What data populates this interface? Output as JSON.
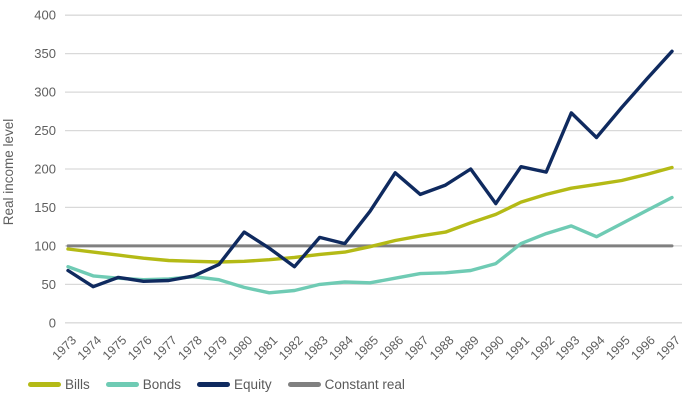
{
  "chart_data": {
    "type": "line",
    "title": "",
    "ylabel": "Real income level",
    "xlabel": "",
    "ylim": [
      0,
      400
    ],
    "ytick_step": 50,
    "grid": "horizontal-only",
    "legend_position": "bottom-left",
    "gridline_color": "#d9d9d9",
    "axis_text_color": "#5f5f5f",
    "x": [
      1973,
      1974,
      1975,
      1976,
      1977,
      1978,
      1979,
      1980,
      1981,
      1982,
      1983,
      1984,
      1985,
      1986,
      1987,
      1988,
      1989,
      1990,
      1991,
      1992,
      1993,
      1994,
      1995,
      1996,
      1997
    ],
    "series": [
      {
        "name": "Bills",
        "color": "#b4ba16",
        "values": [
          96,
          92,
          88,
          84,
          81,
          80,
          79,
          80,
          82,
          85,
          89,
          92,
          99,
          107,
          113,
          118,
          130,
          141,
          157,
          167,
          175,
          180,
          185,
          193,
          202
        ]
      },
      {
        "name": "Bonds",
        "color": "#6fcbb4",
        "values": [
          73,
          61,
          58,
          56,
          57,
          60,
          56,
          46,
          39,
          42,
          50,
          53,
          52,
          58,
          64,
          65,
          68,
          77,
          103,
          116,
          126,
          112,
          129,
          146,
          163
        ]
      },
      {
        "name": "Equity",
        "color": "#0f2a5f",
        "values": [
          68,
          47,
          59,
          54,
          55,
          61,
          76,
          118,
          97,
          73,
          111,
          103,
          145,
          195,
          167,
          179,
          200,
          155,
          203,
          196,
          273,
          241,
          280,
          317,
          353
        ]
      },
      {
        "name": "Constant real",
        "color": "#808080",
        "values": [
          100,
          100,
          100,
          100,
          100,
          100,
          100,
          100,
          100,
          100,
          100,
          100,
          100,
          100,
          100,
          100,
          100,
          100,
          100,
          100,
          100,
          100,
          100,
          100,
          100
        ]
      }
    ]
  }
}
